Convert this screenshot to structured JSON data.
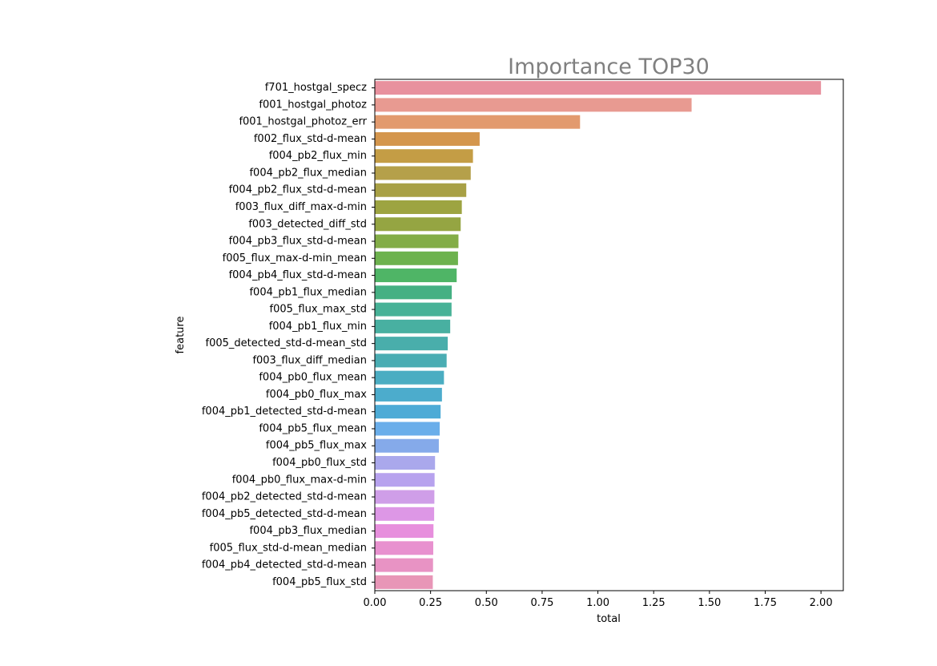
{
  "chart_data": {
    "type": "bar",
    "orientation": "horizontal",
    "title": "Importance TOP30",
    "xlabel": "total",
    "ylabel": "feature",
    "xlim": [
      0,
      2.1
    ],
    "xticks": [
      0.0,
      0.25,
      0.5,
      0.75,
      1.0,
      1.25,
      1.5,
      1.75,
      2.0
    ],
    "xtick_labels": [
      "0.00",
      "0.25",
      "0.50",
      "0.75",
      "1.00",
      "1.25",
      "1.50",
      "1.75",
      "2.00"
    ],
    "grid": false,
    "categories": [
      "f701_hostgal_specz",
      "f001_hostgal_photoz",
      "f001_hostgal_photoz_err",
      "f002_flux_std-d-mean",
      "f004_pb2_flux_min",
      "f004_pb2_flux_median",
      "f004_pb2_flux_std-d-mean",
      "f003_flux_diff_max-d-min",
      "f003_detected_diff_std",
      "f004_pb3_flux_std-d-mean",
      "f005_flux_max-d-min_mean",
      "f004_pb4_flux_std-d-mean",
      "f004_pb1_flux_median",
      "f005_flux_max_std",
      "f004_pb1_flux_min",
      "f005_detected_std-d-mean_std",
      "f003_flux_diff_median",
      "f004_pb0_flux_mean",
      "f004_pb0_flux_max",
      "f004_pb1_detected_std-d-mean",
      "f004_pb5_flux_mean",
      "f004_pb5_flux_max",
      "f004_pb0_flux_std",
      "f004_pb0_flux_max-d-min",
      "f004_pb2_detected_std-d-mean",
      "f004_pb5_detected_std-d-mean",
      "f004_pb3_flux_median",
      "f005_flux_std-d-mean_median",
      "f004_pb4_detected_std-d-mean",
      "f004_pb5_flux_std"
    ],
    "values": [
      2.0,
      1.42,
      0.92,
      0.47,
      0.44,
      0.43,
      0.41,
      0.39,
      0.385,
      0.375,
      0.373,
      0.367,
      0.345,
      0.344,
      0.338,
      0.327,
      0.322,
      0.31,
      0.301,
      0.295,
      0.291,
      0.287,
      0.27,
      0.268,
      0.267,
      0.266,
      0.263,
      0.262,
      0.261,
      0.26
    ],
    "colors": [
      "#e8919e",
      "#e89a91",
      "#e29a6e",
      "#d4964d",
      "#c49d45",
      "#b5a04a",
      "#a8a045",
      "#9da441",
      "#95a542",
      "#83ad47",
      "#6db24e",
      "#4fb566",
      "#45b083",
      "#47b297",
      "#48b0a1",
      "#49aeab",
      "#4aadb3",
      "#4badc2",
      "#4caccc",
      "#4dabd6",
      "#6aaeea",
      "#85aaea",
      "#aaa8ec",
      "#b7a2ee",
      "#cf9ee8",
      "#dd97e6",
      "#e78fdd",
      "#e891cf",
      "#e893c4",
      "#e896b7"
    ],
    "title_color": "#808080"
  }
}
